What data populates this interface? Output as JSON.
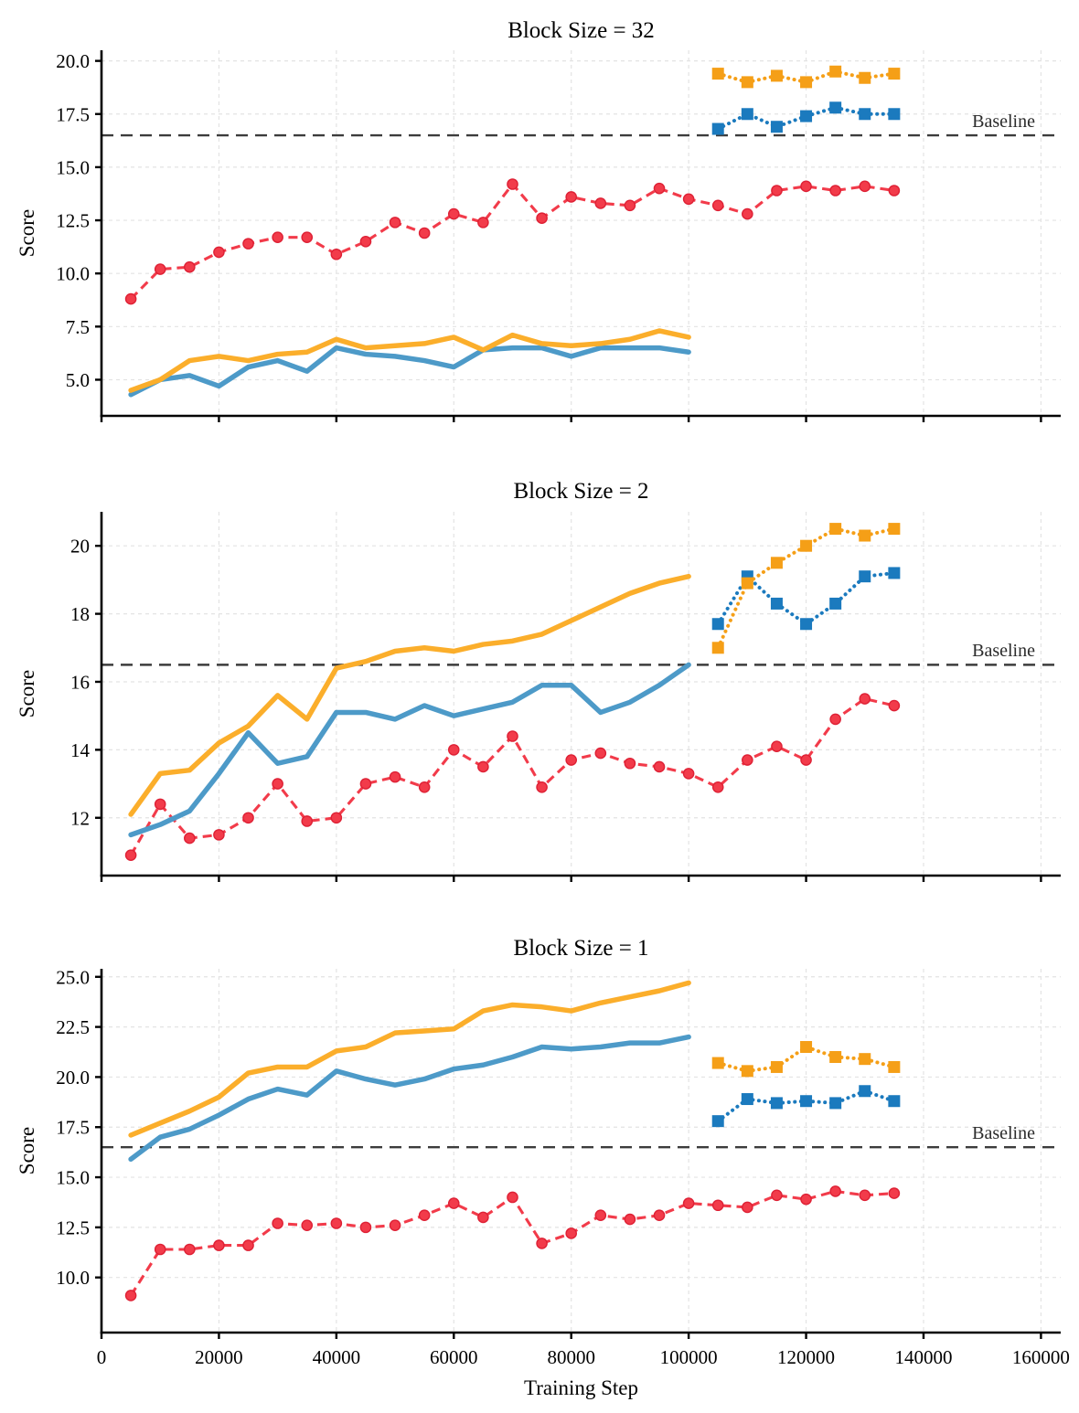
{
  "colors": {
    "solid_orange": "#FBAE2B",
    "solid_blue": "#4D9AC8",
    "square_orange": "#F59F17",
    "square_blue": "#1B7ABE",
    "red": "#F23B4A",
    "red_edge": "#DE2135",
    "baseline": "#3C3C3C",
    "grid": "#E3E3E3",
    "axis": "#000000",
    "text": "#000000"
  },
  "x_axis": {
    "label": "Training Step",
    "tick_values": [
      0,
      20000,
      40000,
      60000,
      80000,
      100000,
      120000,
      140000,
      160000
    ],
    "tick_labels": [
      "0",
      "20000",
      "40000",
      "60000",
      "80000",
      "100000",
      "120000",
      "140000",
      "160000"
    ],
    "xlim": [
      0,
      163400
    ]
  },
  "chart_data": [
    {
      "type": "line",
      "title": "Block Size = 32",
      "ylabel": "Score",
      "baseline": {
        "value": 16.5,
        "label": "Baseline"
      },
      "ylim": [
        3.3,
        20.5
      ],
      "ytick_values": [
        20.0,
        17.5,
        15.0,
        12.5,
        10.0,
        7.5,
        5.0
      ],
      "ytick_labels": [
        "20.0",
        "17.5",
        "15.0",
        "12.5",
        "10.0",
        "7.5",
        "5.0"
      ],
      "grid": true,
      "legend": "none",
      "series": [
        {
          "name": "red-dashed-circles",
          "style": "dashed",
          "marker": "circle",
          "color_key": "red",
          "x": [
            5000,
            10000,
            15000,
            20000,
            25000,
            30000,
            35000,
            40000,
            45000,
            50000,
            55000,
            60000,
            65000,
            70000,
            75000,
            80000,
            85000,
            90000,
            95000,
            100000,
            105000,
            110000,
            115000,
            120000,
            125000,
            130000,
            135000
          ],
          "y": [
            8.8,
            10.2,
            10.3,
            11.0,
            11.4,
            11.7,
            11.7,
            10.9,
            11.5,
            12.4,
            11.9,
            12.8,
            12.4,
            14.2,
            12.6,
            13.6,
            13.3,
            13.2,
            14.0,
            13.5,
            13.2,
            12.8,
            13.9,
            14.1,
            13.9,
            14.1,
            13.9
          ]
        },
        {
          "name": "blue-solid",
          "style": "solid",
          "marker": "none",
          "color_key": "solid_blue",
          "x": [
            5000,
            10000,
            15000,
            20000,
            25000,
            30000,
            35000,
            40000,
            45000,
            50000,
            55000,
            60000,
            65000,
            70000,
            75000,
            80000,
            85000,
            90000,
            95000,
            100000
          ],
          "y": [
            4.3,
            5.0,
            5.2,
            4.7,
            5.6,
            5.9,
            5.4,
            6.5,
            6.2,
            6.1,
            5.9,
            5.6,
            6.4,
            6.5,
            6.5,
            6.1,
            6.5,
            6.5,
            6.5,
            6.3
          ]
        },
        {
          "name": "orange-solid",
          "style": "solid",
          "marker": "none",
          "color_key": "solid_orange",
          "x": [
            5000,
            10000,
            15000,
            20000,
            25000,
            30000,
            35000,
            40000,
            45000,
            50000,
            55000,
            60000,
            65000,
            70000,
            75000,
            80000,
            85000,
            90000,
            95000,
            100000
          ],
          "y": [
            4.5,
            5.0,
            5.9,
            6.1,
            5.9,
            6.2,
            6.3,
            6.9,
            6.5,
            6.6,
            6.7,
            7.0,
            6.4,
            7.1,
            6.7,
            6.6,
            6.7,
            6.9,
            7.3,
            7.0
          ]
        },
        {
          "name": "blue-dotted-squares",
          "style": "dotted",
          "marker": "square",
          "color_key": "square_blue",
          "x": [
            105000,
            110000,
            115000,
            120000,
            125000,
            130000,
            135000
          ],
          "y": [
            16.8,
            17.5,
            16.9,
            17.4,
            17.8,
            17.5,
            17.5
          ]
        },
        {
          "name": "orange-dotted-squares",
          "style": "dotted",
          "marker": "square",
          "color_key": "square_orange",
          "x": [
            105000,
            110000,
            115000,
            120000,
            125000,
            130000,
            135000
          ],
          "y": [
            19.4,
            19.0,
            19.3,
            19.0,
            19.5,
            19.2,
            19.4
          ]
        }
      ]
    },
    {
      "type": "line",
      "title": "Block Size = 2",
      "ylabel": "Score",
      "baseline": {
        "value": 16.5,
        "label": "Baseline"
      },
      "ylim": [
        10.3,
        21.0
      ],
      "ytick_values": [
        20,
        18,
        16,
        14,
        12
      ],
      "ytick_labels": [
        "20",
        "18",
        "16",
        "14",
        "12"
      ],
      "grid": true,
      "legend": "none",
      "series": [
        {
          "name": "red-dashed-circles",
          "style": "dashed",
          "marker": "circle",
          "color_key": "red",
          "x": [
            5000,
            10000,
            15000,
            20000,
            25000,
            30000,
            35000,
            40000,
            45000,
            50000,
            55000,
            60000,
            65000,
            70000,
            75000,
            80000,
            85000,
            90000,
            95000,
            100000,
            105000,
            110000,
            115000,
            120000,
            125000,
            130000,
            135000
          ],
          "y": [
            10.9,
            12.4,
            11.4,
            11.5,
            12.0,
            13.0,
            11.9,
            12.0,
            13.0,
            13.2,
            12.9,
            14.0,
            13.5,
            14.4,
            12.9,
            13.7,
            13.9,
            13.6,
            13.5,
            13.3,
            12.9,
            13.7,
            14.1,
            13.7,
            14.9,
            15.5,
            15.3
          ]
        },
        {
          "name": "blue-solid",
          "style": "solid",
          "marker": "none",
          "color_key": "solid_blue",
          "x": [
            5000,
            10000,
            15000,
            20000,
            25000,
            30000,
            35000,
            40000,
            45000,
            50000,
            55000,
            60000,
            65000,
            70000,
            75000,
            80000,
            85000,
            90000,
            95000,
            100000
          ],
          "y": [
            11.5,
            11.8,
            12.2,
            13.3,
            14.5,
            13.6,
            13.8,
            15.1,
            15.1,
            14.9,
            15.3,
            15.0,
            15.2,
            15.4,
            15.9,
            15.9,
            15.1,
            15.4,
            15.9,
            16.5
          ]
        },
        {
          "name": "orange-solid",
          "style": "solid",
          "marker": "none",
          "color_key": "solid_orange",
          "x": [
            5000,
            10000,
            15000,
            20000,
            25000,
            30000,
            35000,
            40000,
            45000,
            50000,
            55000,
            60000,
            65000,
            70000,
            75000,
            80000,
            85000,
            90000,
            95000,
            100000
          ],
          "y": [
            12.1,
            13.3,
            13.4,
            14.2,
            14.7,
            15.6,
            14.9,
            16.4,
            16.6,
            16.9,
            17.0,
            16.9,
            17.1,
            17.2,
            17.4,
            17.8,
            18.2,
            18.6,
            18.9,
            19.1
          ]
        },
        {
          "name": "blue-dotted-squares",
          "style": "dotted",
          "marker": "square",
          "color_key": "square_blue",
          "x": [
            105000,
            110000,
            115000,
            120000,
            125000,
            130000,
            135000
          ],
          "y": [
            17.7,
            19.1,
            18.3,
            17.7,
            18.3,
            19.1,
            19.2
          ]
        },
        {
          "name": "orange-dotted-squares",
          "style": "dotted",
          "marker": "square",
          "color_key": "square_orange",
          "x": [
            105000,
            110000,
            115000,
            120000,
            125000,
            130000,
            135000
          ],
          "y": [
            17.0,
            18.9,
            19.5,
            20.0,
            20.5,
            20.3,
            20.5
          ]
        }
      ]
    },
    {
      "type": "line",
      "title": "Block Size = 1",
      "ylabel": "Score",
      "baseline": {
        "value": 16.5,
        "label": "Baseline"
      },
      "ylim": [
        7.25,
        25.4
      ],
      "ytick_values": [
        25.0,
        22.5,
        20.0,
        17.5,
        15.0,
        12.5,
        10.0
      ],
      "ytick_labels": [
        "25.0",
        "22.5",
        "20.0",
        "17.5",
        "15.0",
        "12.5",
        "10.0"
      ],
      "grid": true,
      "legend": "none",
      "series": [
        {
          "name": "red-dashed-circles",
          "style": "dashed",
          "marker": "circle",
          "color_key": "red",
          "x": [
            5000,
            10000,
            15000,
            20000,
            25000,
            30000,
            35000,
            40000,
            45000,
            50000,
            55000,
            60000,
            65000,
            70000,
            75000,
            80000,
            85000,
            90000,
            95000,
            100000,
            105000,
            110000,
            115000,
            120000,
            125000,
            130000,
            135000
          ],
          "y": [
            9.1,
            11.4,
            11.4,
            11.6,
            11.6,
            12.7,
            12.6,
            12.7,
            12.5,
            12.6,
            13.1,
            13.7,
            13.0,
            14.0,
            11.7,
            12.2,
            13.1,
            12.9,
            13.1,
            13.7,
            13.6,
            13.5,
            14.1,
            13.9,
            14.3,
            14.1,
            14.2
          ]
        },
        {
          "name": "blue-solid",
          "style": "solid",
          "marker": "none",
          "color_key": "solid_blue",
          "x": [
            5000,
            10000,
            15000,
            20000,
            25000,
            30000,
            35000,
            40000,
            45000,
            50000,
            55000,
            60000,
            65000,
            70000,
            75000,
            80000,
            85000,
            90000,
            95000,
            100000
          ],
          "y": [
            15.9,
            17.0,
            17.4,
            18.1,
            18.9,
            19.4,
            19.1,
            20.3,
            19.9,
            19.6,
            19.9,
            20.4,
            20.6,
            21.0,
            21.5,
            21.4,
            21.5,
            21.7,
            21.7,
            22.0
          ]
        },
        {
          "name": "orange-solid",
          "style": "solid",
          "marker": "none",
          "color_key": "solid_orange",
          "x": [
            5000,
            10000,
            15000,
            20000,
            25000,
            30000,
            35000,
            40000,
            45000,
            50000,
            55000,
            60000,
            65000,
            70000,
            75000,
            80000,
            85000,
            90000,
            95000,
            100000
          ],
          "y": [
            17.1,
            17.7,
            18.3,
            19.0,
            20.2,
            20.5,
            20.5,
            21.3,
            21.5,
            22.2,
            22.3,
            22.4,
            23.3,
            23.6,
            23.5,
            23.3,
            23.7,
            24.0,
            24.3,
            24.7
          ]
        },
        {
          "name": "blue-dotted-squares",
          "style": "dotted",
          "marker": "square",
          "color_key": "square_blue",
          "x": [
            105000,
            110000,
            115000,
            120000,
            125000,
            130000,
            135000
          ],
          "y": [
            17.8,
            18.9,
            18.7,
            18.8,
            18.7,
            19.3,
            18.8
          ]
        },
        {
          "name": "orange-dotted-squares",
          "style": "dotted",
          "marker": "square",
          "color_key": "square_orange",
          "x": [
            105000,
            110000,
            115000,
            120000,
            125000,
            130000,
            135000
          ],
          "y": [
            20.7,
            20.3,
            20.5,
            21.5,
            21.0,
            20.9,
            20.5
          ]
        }
      ]
    }
  ]
}
